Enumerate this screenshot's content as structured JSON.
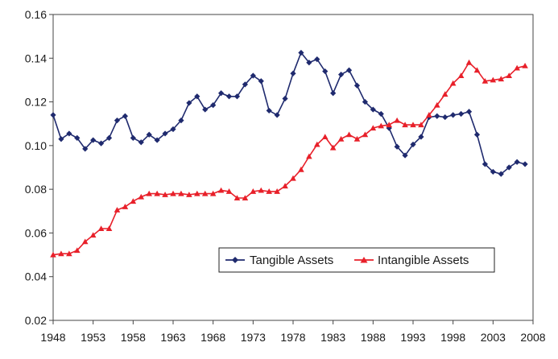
{
  "chart_data": {
    "type": "line",
    "title": "",
    "xlabel": "",
    "ylabel": "",
    "xlim": [
      1948,
      2008
    ],
    "ylim": [
      0.02,
      0.16
    ],
    "x_ticks": [
      "1948",
      "1953",
      "1958",
      "1963",
      "1968",
      "1973",
      "1978",
      "1983",
      "1988",
      "1993",
      "1998",
      "2003",
      "2008"
    ],
    "y_ticks": [
      "0.02",
      "0.04",
      "0.06",
      "0.08",
      "0.10",
      "0.12",
      "0.14",
      "0.16"
    ],
    "grid": false,
    "legend_position": "inside-bottom-right",
    "x": [
      1948,
      1949,
      1950,
      1951,
      1952,
      1953,
      1954,
      1955,
      1956,
      1957,
      1958,
      1959,
      1960,
      1961,
      1962,
      1963,
      1964,
      1965,
      1966,
      1967,
      1968,
      1969,
      1970,
      1971,
      1972,
      1973,
      1974,
      1975,
      1976,
      1977,
      1978,
      1979,
      1980,
      1981,
      1982,
      1983,
      1984,
      1985,
      1986,
      1987,
      1988,
      1989,
      1990,
      1991,
      1992,
      1993,
      1994,
      1995,
      1996,
      1997,
      1998,
      1999,
      2000,
      2001,
      2002,
      2003,
      2004,
      2005,
      2006,
      2007,
      2008
    ],
    "series": [
      {
        "name": "Tangible Assets",
        "color": "#1f2a6e",
        "marker": "diamond",
        "values": [
          0.114,
          0.103,
          0.1055,
          0.1035,
          0.0985,
          0.1025,
          0.101,
          0.1035,
          0.1115,
          0.1135,
          0.1035,
          0.1015,
          0.105,
          0.1025,
          0.1055,
          0.1075,
          0.1115,
          0.1195,
          0.1225,
          0.1165,
          0.1185,
          0.124,
          0.1225,
          0.1225,
          0.128,
          0.132,
          0.1295,
          0.116,
          0.114,
          0.1215,
          0.133,
          0.1425,
          0.138,
          0.1395,
          0.134,
          0.124,
          0.1325,
          0.1345,
          0.1275,
          0.12,
          0.1165,
          0.1145,
          0.108,
          0.0995,
          0.0955,
          0.1005,
          0.104,
          0.113,
          0.1135,
          0.113,
          0.114,
          0.1145,
          0.1155,
          0.105,
          0.0915,
          0.088,
          0.087,
          0.09,
          0.0925,
          0.0915,
          null
        ]
      },
      {
        "name": "Intangible Assets",
        "color": "#e8202a",
        "marker": "triangle",
        "values": [
          0.05,
          0.0505,
          0.0505,
          0.052,
          0.056,
          0.059,
          0.062,
          0.062,
          0.0705,
          0.072,
          0.0745,
          0.0765,
          0.078,
          0.078,
          0.0775,
          0.078,
          0.078,
          0.0775,
          0.078,
          0.078,
          0.078,
          0.0795,
          0.079,
          0.076,
          0.076,
          0.079,
          0.0795,
          0.079,
          0.079,
          0.0815,
          0.085,
          0.089,
          0.095,
          0.1005,
          0.104,
          0.099,
          0.103,
          0.105,
          0.103,
          0.105,
          0.108,
          0.109,
          0.1095,
          0.1115,
          0.1095,
          0.1095,
          0.1095,
          0.114,
          0.1185,
          0.1235,
          0.1285,
          0.132,
          0.138,
          0.1345,
          0.1295,
          0.13,
          0.1305,
          0.132,
          0.1355,
          0.1365,
          null
        ]
      }
    ]
  }
}
